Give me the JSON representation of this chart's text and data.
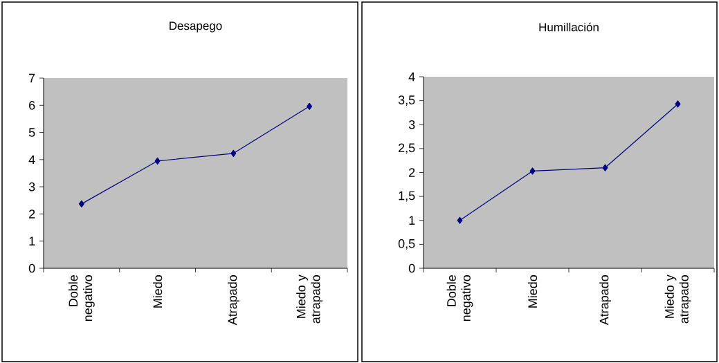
{
  "chart_data": [
    {
      "type": "line",
      "title": "Desapego",
      "categories": [
        "Doble negativo",
        "Miedo",
        "Atrapado",
        "Miedo y atrapado"
      ],
      "values": [
        2.37,
        3.95,
        4.23,
        5.96
      ],
      "color": "#000080",
      "marker": "diamond",
      "grid": false,
      "ylim": [
        0,
        7
      ],
      "yticks": [
        0,
        1,
        2,
        3,
        4,
        5,
        6,
        7
      ]
    },
    {
      "type": "line",
      "title": "Humillación",
      "categories": [
        "Doble negativo",
        "Miedo",
        "Atrapado",
        "Miedo y atrapado"
      ],
      "values": [
        1.0,
        2.03,
        2.1,
        3.43
      ],
      "color": "#000080",
      "marker": "diamond",
      "grid": false,
      "ylim": [
        0,
        4
      ],
      "yticks": [
        0,
        {
          "value": 0.5,
          "label": "0,5"
        },
        1,
        {
          "value": 1.5,
          "label": "1,5"
        },
        2,
        {
          "value": 2.5,
          "label": "2,5"
        },
        3,
        {
          "value": 3.5,
          "label": "3,5"
        },
        4
      ]
    }
  ]
}
